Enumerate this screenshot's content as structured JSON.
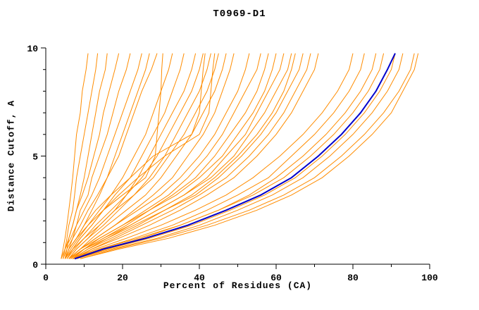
{
  "chart_data": {
    "type": "line",
    "title": "T0969-D1",
    "xlabel": "Percent of Residues (CA)",
    "ylabel": "Distance Cutoff, A",
    "xlim": [
      0,
      100
    ],
    "ylim": [
      0,
      10
    ],
    "x_ticks": [
      0,
      20,
      40,
      60,
      80,
      100
    ],
    "x_minor_ticks": [
      10,
      30,
      50,
      70,
      90
    ],
    "y_ticks": [
      0,
      5,
      10
    ],
    "y_minor_ticks": [
      1,
      2,
      3,
      4,
      6,
      7,
      8,
      9
    ],
    "grid": false,
    "legend": "none",
    "colors": {
      "model": "#FF8C00",
      "highlight": "#0000CC",
      "axis": "#000000"
    },
    "y_samples": [
      0.25,
      0.7,
      1.2,
      1.8,
      2.5,
      3.2,
      4.0,
      5.0,
      6.0,
      7.0,
      8.0,
      9.0,
      9.75
    ],
    "model_curves_x": [
      [
        4,
        4.5,
        5,
        5.5,
        6,
        6.5,
        7,
        7.5,
        8,
        9,
        9.5,
        10.5,
        11
      ],
      [
        4,
        5,
        5.5,
        6,
        7,
        7.5,
        8,
        9,
        10,
        11,
        12,
        13,
        13.5
      ],
      [
        5,
        5.5,
        6,
        7,
        8,
        9,
        10,
        11,
        12,
        13,
        14,
        15.5,
        16
      ],
      [
        4.5,
        5,
        6,
        7,
        8,
        9.5,
        11,
        12.5,
        14,
        15,
        16.5,
        18,
        19
      ],
      [
        5,
        6,
        7,
        8,
        9,
        11,
        12,
        14,
        16,
        17.5,
        19,
        21,
        22
      ],
      [
        4,
        5,
        6.5,
        8,
        10,
        12,
        14,
        16,
        18,
        20,
        22,
        24,
        25
      ],
      [
        5,
        6,
        8,
        10,
        12,
        14,
        16,
        18,
        20,
        22,
        24,
        26,
        27
      ],
      [
        4.5,
        5.5,
        7,
        9,
        11,
        13.5,
        16,
        19,
        21,
        23,
        25,
        27.5,
        29
      ],
      [
        5,
        6,
        8,
        11,
        14,
        17,
        20,
        23,
        26,
        28,
        30,
        32,
        33
      ],
      [
        5.5,
        7,
        9,
        12,
        15,
        18,
        22,
        25,
        28,
        31,
        33,
        35,
        36
      ],
      [
        6,
        8,
        11,
        14,
        18,
        21,
        24,
        27,
        30,
        33,
        36,
        38,
        39
      ],
      [
        5,
        7,
        10,
        13,
        17,
        21,
        25,
        29,
        32,
        35,
        38,
        40,
        41
      ],
      [
        6,
        8,
        11,
        15,
        19,
        23,
        27,
        31,
        34,
        37,
        40,
        42,
        43
      ],
      [
        5.5,
        7.5,
        10,
        14,
        18,
        23,
        28,
        32,
        36,
        39,
        42,
        44,
        45
      ],
      [
        6,
        9,
        12,
        16,
        21,
        26,
        30,
        34,
        38,
        41,
        44,
        46,
        47
      ],
      [
        6,
        9,
        13,
        18,
        23,
        28,
        33,
        37,
        41,
        44,
        46,
        48,
        49
      ],
      [
        5,
        6,
        8,
        10,
        13,
        17,
        22,
        28,
        38,
        40,
        40.5,
        41,
        41.5
      ],
      [
        5.5,
        7,
        9,
        12,
        15,
        19,
        24,
        31,
        40,
        42.5,
        43,
        43.5,
        44
      ],
      [
        5,
        6.5,
        8.5,
        11,
        15,
        20,
        26,
        28.5,
        29,
        29.5,
        30,
        30.2,
        30.5
      ],
      [
        6,
        9,
        13,
        18,
        24,
        30,
        35,
        40,
        44,
        47,
        50,
        52,
        53
      ],
      [
        6.5,
        10,
        14,
        20,
        26,
        32,
        37,
        42,
        46,
        49,
        52,
        55,
        56
      ],
      [
        7,
        10,
        15,
        21,
        27,
        33,
        39,
        44,
        48,
        52,
        55,
        57,
        58
      ],
      [
        6,
        9,
        14,
        20,
        27,
        34,
        40,
        46,
        50,
        54,
        57,
        59,
        60
      ],
      [
        7,
        11,
        16,
        22,
        29,
        36,
        42,
        47,
        52,
        55,
        58,
        61,
        62
      ],
      [
        6.5,
        10,
        15,
        22,
        29,
        36,
        43,
        49,
        53,
        57,
        60,
        63,
        64
      ],
      [
        7,
        11,
        17,
        24,
        31,
        38,
        44,
        50,
        55,
        59,
        62,
        64,
        65
      ],
      [
        6,
        10,
        16,
        23,
        31,
        39,
        45,
        51,
        56,
        60,
        63,
        66,
        67
      ],
      [
        7.5,
        12,
        18,
        25,
        33,
        40,
        47,
        53,
        58,
        62,
        65,
        68,
        69
      ],
      [
        7,
        12,
        19,
        27,
        35,
        42,
        49,
        55,
        60,
        64,
        67,
        70,
        71
      ],
      [
        7,
        13,
        21,
        30,
        39,
        47,
        54,
        61,
        67,
        72,
        76,
        79,
        80
      ],
      [
        7.5,
        14,
        23,
        33,
        42,
        50,
        58,
        64,
        70,
        75,
        79,
        82,
        83
      ],
      [
        8,
        15,
        25,
        35,
        45,
        53,
        60,
        67,
        73,
        78,
        82,
        85,
        86
      ],
      [
        7,
        14,
        24,
        35,
        45,
        54,
        62,
        69,
        75,
        80,
        84,
        87,
        88
      ],
      [
        8,
        16,
        27,
        38,
        48,
        57,
        65,
        72,
        78,
        83,
        87,
        90,
        91
      ],
      [
        8,
        17,
        29,
        40,
        50,
        59,
        67,
        74,
        80,
        85,
        89,
        92,
        93
      ],
      [
        9,
        18,
        30,
        42,
        53,
        62,
        70,
        77,
        83,
        88,
        92,
        95,
        96
      ],
      [
        9,
        19,
        32,
        44,
        55,
        64,
        72,
        79,
        85,
        90,
        93,
        96,
        97
      ]
    ],
    "highlight_curve_x": [
      7.5,
      15,
      26,
      37,
      47,
      56,
      64,
      71,
      77,
      82,
      86,
      89,
      91
    ]
  }
}
